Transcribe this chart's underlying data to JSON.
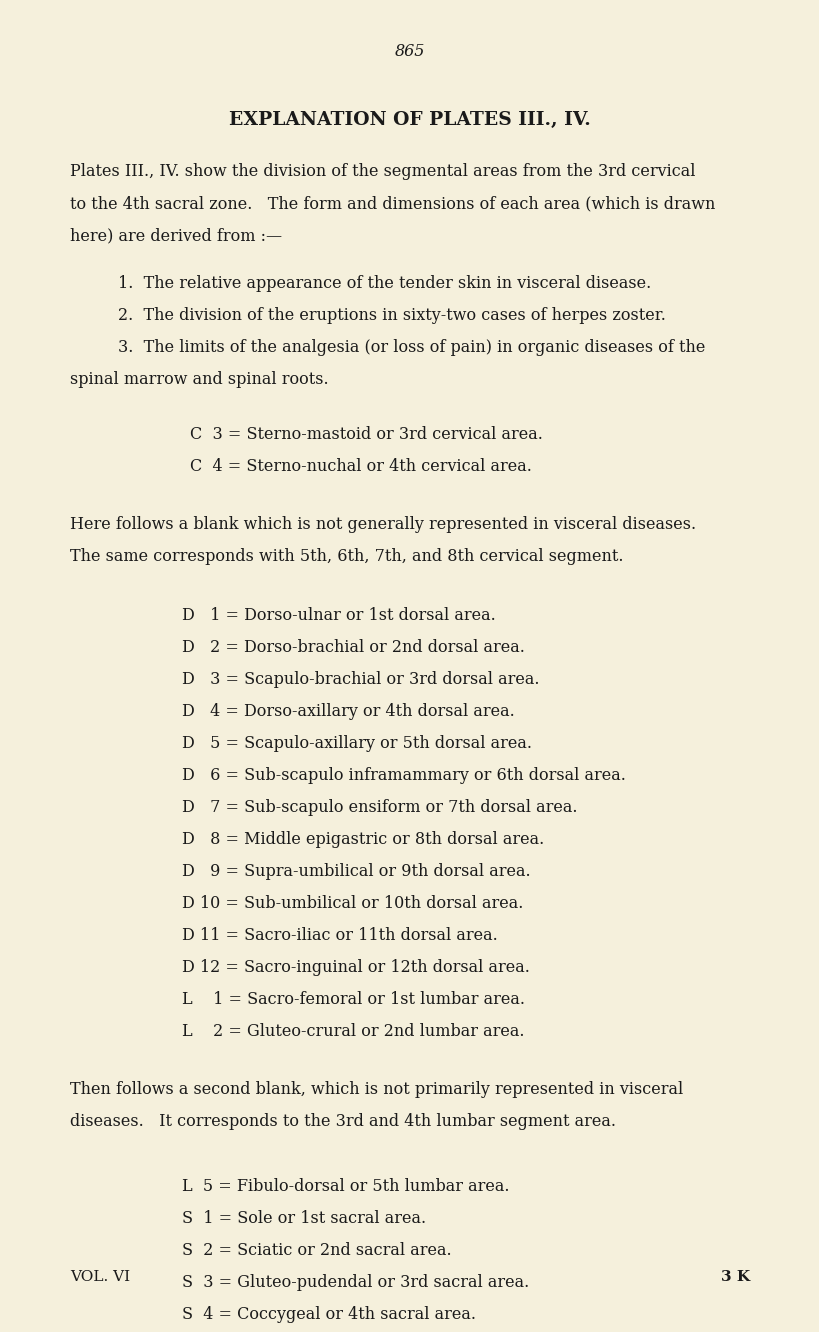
{
  "background_color": "#f5f0dc",
  "page_number": "865",
  "title": "EXPLANATION OF PLATES III., IV.",
  "intro_lines": [
    "Plates III., IV. show the division of the segmental areas from the 3rd cervical",
    "to the 4th sacral zone.   The form and dimensions of each area (which is drawn",
    "here) are derived from :—"
  ],
  "numbered_items": [
    [
      "1.  The relative appearance of the tender skin in visceral disease."
    ],
    [
      "2.  The division of the eruptions in sixty-two cases of herpes zoster."
    ],
    [
      "3.  The limits of the analgesia (or loss of pain) in organic diseases of the",
      "spinal marrow and spinal roots."
    ]
  ],
  "indented_items_1": [
    "C  3 = Sterno-mastoid or 3rd cervical area.",
    "C  4 = Sterno-nuchal or 4th cervical area."
  ],
  "blank_note_1": [
    "Here follows a blank which is not generally represented in visceral diseases.",
    "The same corresponds with 5th, 6th, 7th, and 8th cervical segment."
  ],
  "indented_items_2": [
    "D   1 = Dorso-ulnar or 1st dorsal area.",
    "D   2 = Dorso-brachial or 2nd dorsal area.",
    "D   3 = Scapulo-brachial or 3rd dorsal area.",
    "D   4 = Dorso-axillary or 4th dorsal area.",
    "D   5 = Scapulo-axillary or 5th dorsal area.",
    "D   6 = Sub-scapulo inframammary or 6th dorsal area.",
    "D   7 = Sub-scapulo ensiform or 7th dorsal area.",
    "D   8 = Middle epigastric or 8th dorsal area.",
    "D   9 = Supra-umbilical or 9th dorsal area.",
    "D 10 = Sub-umbilical or 10th dorsal area.",
    "D 11 = Sacro-iliac or 11th dorsal area.",
    "D 12 = Sacro-inguinal or 12th dorsal area.",
    "L    1 = Sacro-femoral or 1st lumbar area.",
    "L    2 = Gluteo-crural or 2nd lumbar area."
  ],
  "blank_note_2": [
    "Then follows a second blank, which is not primarily represented in visceral",
    "diseases.   It corresponds to the 3rd and 4th lumbar segment area."
  ],
  "indented_items_3": [
    "L  5 = Fibulo-dorsal or 5th lumbar area.",
    "S  1 = Sole or 1st sacral area.",
    "S  2 = Sciatic or 2nd sacral area.",
    "S  3 = Gluteo-pudendal or 3rd sacral area.",
    "S  4 = Coccygeal or 4th sacral area."
  ],
  "footer_left": "VOL. VI",
  "footer_right": "3 K",
  "text_color": "#1a1a1a",
  "font_size_body": 11.5,
  "font_size_title": 13.5,
  "font_size_page_num": 11.5,
  "font_size_footer": 11.0
}
